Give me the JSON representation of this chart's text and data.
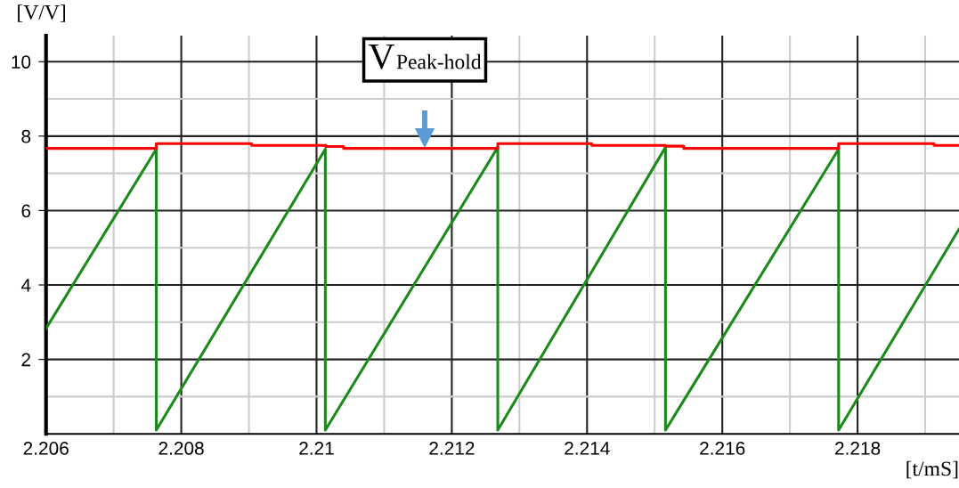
{
  "chart_data": {
    "type": "line",
    "xlabel": "[t/mS]",
    "ylabel": "[V/V]",
    "xlim": [
      2.206,
      2.2195
    ],
    "ylim": [
      0,
      10.7
    ],
    "xticks": [
      2.206,
      {
        "value": 2.207,
        "label": null
      },
      2.208,
      {
        "value": 2.209,
        "label": null
      },
      2.21,
      {
        "value": 2.211,
        "label": null
      },
      2.212,
      {
        "value": 2.213,
        "label": null
      },
      2.214,
      {
        "value": 2.215,
        "label": null
      },
      2.216,
      {
        "value": 2.217,
        "label": null
      },
      2.218,
      {
        "value": 2.219,
        "label": null
      }
    ],
    "yticks": [
      {
        "value": 1,
        "label": null
      },
      2,
      {
        "value": 3,
        "label": null
      },
      4,
      {
        "value": 5,
        "label": null
      },
      6,
      {
        "value": 7,
        "label": null
      },
      8,
      {
        "value": 9,
        "label": null
      },
      10
    ],
    "grid": true,
    "marker": "none",
    "line_style": "solid",
    "series": [
      {
        "color": "#1a8a1a",
        "x": [
          2.206,
          2.20763,
          2.20763,
          2.21013,
          2.21013,
          2.21268,
          2.21268,
          2.21516,
          2.21516,
          2.21772,
          2.21772,
          2.2195
        ],
        "values": [
          2.83,
          7.65,
          0.1,
          7.65,
          0.1,
          7.7,
          0.1,
          7.7,
          0.1,
          7.65,
          0.1,
          5.5
        ]
      },
      {
        "type": "step",
        "color": "#ff0000",
        "x": [
          2.206,
          2.20763,
          2.20904,
          2.21014,
          2.2104,
          2.21268,
          2.21407,
          2.21516,
          2.21543,
          2.21772,
          2.21913,
          2.2195
        ],
        "values": [
          7.67,
          7.8,
          7.75,
          7.72,
          7.67,
          7.8,
          7.75,
          7.73,
          7.67,
          7.8,
          7.75,
          7.75
        ]
      }
    ],
    "annotations": [
      {
        "text": "V$_{Peak-hold}$",
        "x": 2.2116,
        "y": 7.67
      }
    ]
  }
}
